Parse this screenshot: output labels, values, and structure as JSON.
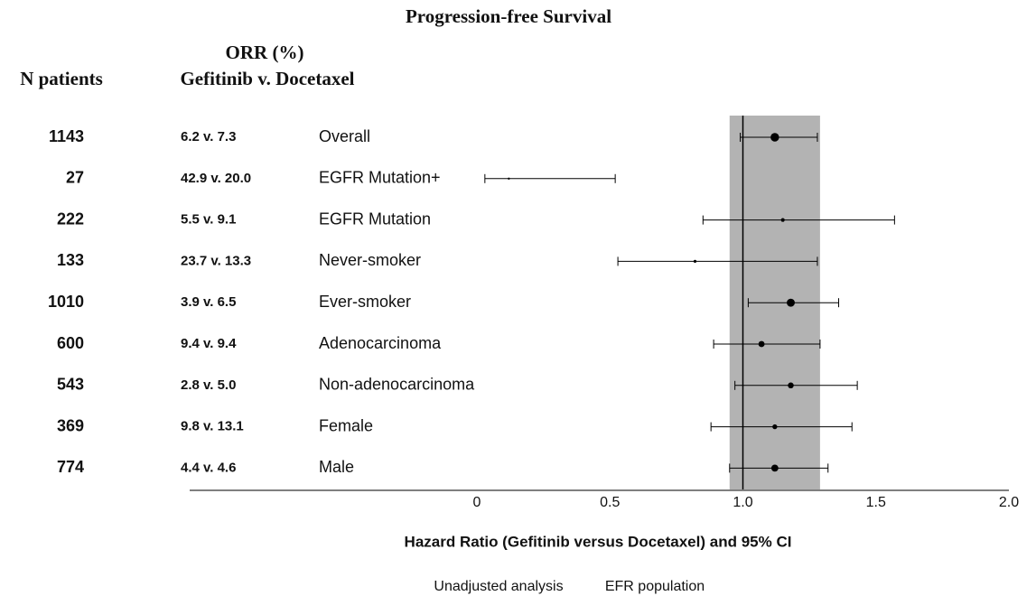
{
  "chart_data": {
    "type": "forest",
    "title": "Progression-free Survival",
    "orr_header": [
      "ORR (%)",
      "Gefitinib v. Docetaxel"
    ],
    "n_header": "N patients",
    "categories": [
      "Overall",
      "EGFR Mutation+",
      "EGFR Mutation",
      "Never-smoker",
      "Ever-smoker",
      "Adenocarcinoma",
      "Non-adenocarcinoma",
      "Female",
      "Male"
    ],
    "n_patients": [
      1143,
      27,
      222,
      133,
      1010,
      600,
      543,
      369,
      774
    ],
    "orr": [
      "6.2 v. 7.3",
      "42.9 v. 20.0",
      "5.5 v. 9.1",
      "23.7 v. 13.3",
      "3.9 v. 6.5",
      "9.4 v. 9.4",
      "2.8 v. 5.0",
      "9.8 v. 13.1",
      "4.4 v. 4.6"
    ],
    "values": [
      1.12,
      0.12,
      1.15,
      0.82,
      1.18,
      1.07,
      1.18,
      1.12,
      1.12
    ],
    "lower": [
      0.99,
      0.03,
      0.85,
      0.53,
      1.02,
      0.89,
      0.97,
      0.88,
      0.95
    ],
    "upper": [
      1.28,
      0.52,
      1.57,
      1.28,
      1.36,
      1.29,
      1.43,
      1.41,
      1.32
    ],
    "reference_line": 1,
    "reference_band": [
      0.95,
      1.29
    ],
    "band_color": "#b3b3b3",
    "color": "#000000",
    "xlim": [
      0,
      2
    ],
    "xticks": [
      0,
      0.5,
      {
        "value": 1,
        "label": "1.0"
      },
      1.5,
      {
        "value": 2,
        "label": "2.0"
      }
    ],
    "xlabel": "Hazard Ratio (Gefitinib versus Docetaxel) and 95% CI",
    "notes": [
      "Unadjusted analysis",
      "EFR population"
    ]
  }
}
